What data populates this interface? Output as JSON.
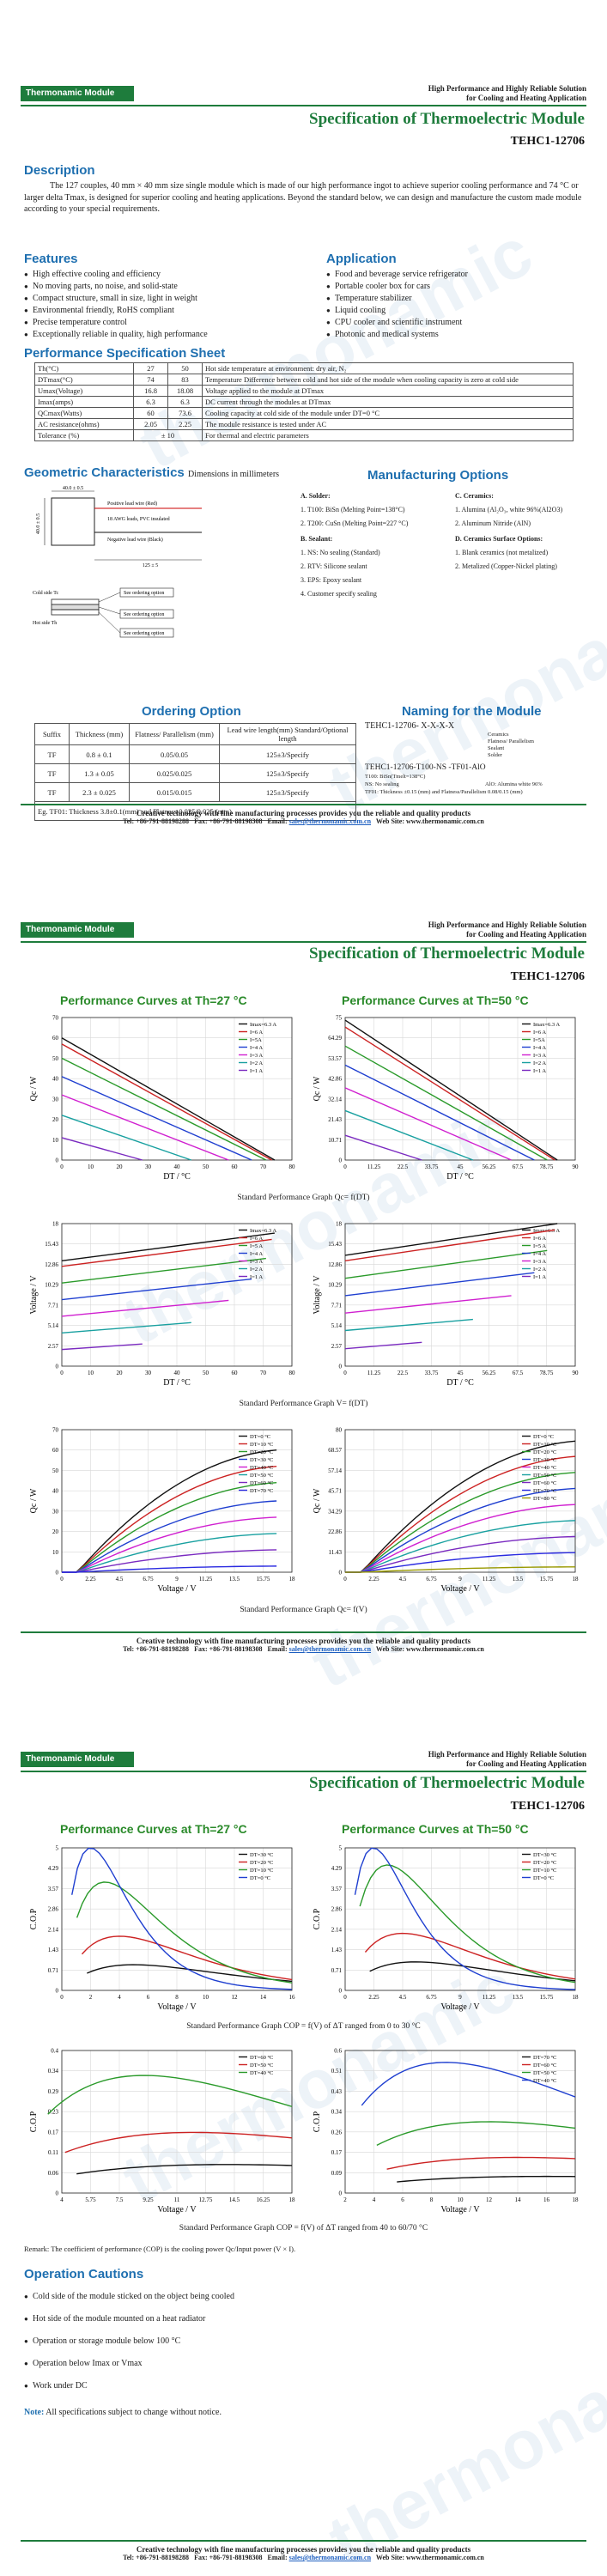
{
  "common": {
    "brand": "Thermonamic Module",
    "tagline_1": "High Performance and Highly Reliable Solution",
    "tagline_2": "for Cooling and Heating Application",
    "title": "Specification of Thermoelectric Module",
    "model": "TEHC1-12706",
    "footer_1": "Creative technology with fine manufacturing processes provides you the reliable and quality products",
    "footer_tel": "Tel: +86-791-88198288",
    "footer_fax": "Fax: +86-791-88198308",
    "footer_email_label": "Email:",
    "footer_email": "sales@thermonamic.com.cn",
    "footer_web": "Web Site: www.thermonamic.com.cn",
    "watermark": "thermonamic"
  },
  "page1": {
    "description_head": "Description",
    "description": "The 127 couples, 40 mm × 40 mm size single module which is made of our high performance ingot to achieve superior cooling performance and 74 °C or larger delta Tmax, is designed for superior cooling and heating applications. Beyond the standard below, we can design and manufacture the custom made module according to your special requirements.",
    "features_head": "Features",
    "features": [
      "High effective cooling and efficiency",
      "No moving parts, no noise, and solid-state",
      "Compact structure, small in size, light in weight",
      "Environmental friendly, RoHS compliant",
      "Precise temperature control",
      "Exceptionally reliable in quality, high performance"
    ],
    "application_head": "Application",
    "applications": [
      "Food and beverage service refrigerator",
      "Portable cooler box for cars",
      "Temperature stabilizer",
      "Liquid cooling",
      "CPU cooler and scientific instrument",
      "Photonic and medical systems"
    ],
    "perf_head": "Performance Specification Sheet",
    "perf_rows": [
      [
        "Th(°C)",
        "27",
        "50",
        "Hot side temperature at environment: dry air, N₂"
      ],
      [
        "DTmax(°C)",
        "74",
        "83",
        "Temperature Difference between cold and hot side of the module when cooling capacity is zero at cold side"
      ],
      [
        "Umax(Voltage)",
        "16.8",
        "18.08",
        "Voltage applied to the module at DTmax"
      ],
      [
        "Imax(amps)",
        "6.3",
        "6.3",
        "DC current through the modules at DTmax"
      ],
      [
        "QCmax(Watts)",
        "60",
        "73.6",
        "Cooling capacity at cold side of the module under DT=0 °C"
      ],
      [
        "AC resistance(ohms)",
        "2.05",
        "2.25",
        "The module resistance is tested under AC"
      ],
      [
        "Tolerance (%)",
        "± 10",
        "",
        "For thermal and electric parameters"
      ]
    ],
    "geo_head": "Geometric Characteristics",
    "geo_sub": "Dimensions in millimeters",
    "geo_labels": {
      "dim_top": "40.0 ± 0.5",
      "dim_side": "40.0 ± 0.5",
      "dim_wire": "125 ± 5",
      "lead_1": "Positive lead wire (Red)",
      "lead_2": "18 AWG leads, PVC insulated",
      "lead_3": "Negative lead wire (Black)",
      "cold": "Cold side Tc",
      "hot": "Hot side Th",
      "surface_1": "See ordering option",
      "surface_2": "See ordering option",
      "surface_3": "See ordering option"
    },
    "mfg_head": "Manufacturing Options",
    "solder_head": "A. Solder:",
    "solder": [
      "1. T100: BiSn (Melting Point=138°C)",
      "2. T200: CuSn (Melting Point=227 °C)"
    ],
    "sealant_head": "B. Sealant:",
    "sealant": [
      "1. NS: No sealing (Standard)",
      "2. RTV: Silicone sealant",
      "3. EPS: Epoxy sealant",
      "4. Customer specify sealing"
    ],
    "ceramics_head": "C. Ceramics:",
    "ceramics": [
      "1. Alumina (Al₂O₃, white 96%(Al2O3)",
      "2. Aluminum Nitride (AlN)"
    ],
    "surface_head": "D. Ceramics Surface Options:",
    "surface": [
      "1. Blank ceramics (not metalized)",
      "2. Metalized (Copper-Nickel plating)"
    ],
    "order_head": "Ordering Option",
    "order_cols": [
      "Suffix",
      "Thickness (mm)",
      "Flatness/ Parallelism (mm)",
      "Lead wire length(mm) Standard/Optional length"
    ],
    "order_rows": [
      [
        "TF",
        "0.8 ± 0.1",
        "0.05/0.05",
        "125±3/Specify"
      ],
      [
        "TF",
        "1.3 ± 0.05",
        "0.025/0.025",
        "125±3/Specify"
      ],
      [
        "TF",
        "2.3 ± 0.025",
        "0.015/0.015",
        "125±3/Specify"
      ]
    ],
    "order_note": "Eg. TF01: Thickness 3.8±0.1(mm) and Flatness 0.025/0.025 (mm)",
    "naming_head": "Naming for the Module",
    "naming_code": "TEHC1-12706-  X-X-X-X",
    "naming_parts": [
      "Ceramics",
      "Flatness/ Parallelism",
      "Sealant",
      "Solder"
    ],
    "naming_example": "TEHC1-12706-T100-NS -TF01-AlO",
    "naming_ex_1": "T100: BiSn(Tmelt=138°C)",
    "naming_ex_2": "NS: No sealing",
    "naming_ex_3": "AlO: Alumina white 96%",
    "naming_ex_4": "TF01: Thickness ±0.15 (mm) and Flatness/Parallelism 0.08/0.15 (mm)"
  },
  "page2": {
    "head_left": "Performance Curves at Th=27 °C",
    "head_right": "Performance Curves at Th=50 °C",
    "caption_1": "Standard Performance Graph Qc= f(DT)",
    "caption_2": "Standard Performance Graph V= f(DT)",
    "caption_3": "Standard Performance Graph Qc= f(V)",
    "qc_ylabel": "Qc / W",
    "v_ylabel": "Voltage / V",
    "dt_xlabel": "DT / °C",
    "v_xlabel": "Voltage / V"
  },
  "page3": {
    "head_left": "Performance Curves at Th=27 °C",
    "head_right": "Performance Curves at Th=50 °C",
    "cop_ylabel": "C.O.P",
    "v_xlabel": "Voltage / V",
    "caption_1": "Standard Performance Graph COP = f(V) of ΔT ranged from 0 to 30 °C",
    "caption_2": "Standard Performance Graph COP = f(V) of ΔT ranged from 40 to 60/70 °C",
    "remark": "Remark: The coefficient of performance (COP) is the cooling power Qc/Input power (V × I).",
    "cautions_head": "Operation Cautions",
    "cautions": [
      "Cold side of the module sticked on the object being cooled",
      "Hot side of the module mounted on a heat radiator",
      "Operation or storage module below 100 °C",
      "Operation below Imax or Vmax",
      "Work under DC"
    ],
    "note_label": "Note:",
    "note": "All specifications subject to change without notice."
  },
  "chart_data": [
    {
      "type": "line",
      "title": "Performance Curves at Th=27 °C",
      "xlabel": "DT / °C",
      "ylabel": "Qc / W",
      "xlim": [
        0,
        80
      ],
      "ylim": [
        0,
        70
      ],
      "series": [
        {
          "name": "Imax=6.3 A",
          "x": [
            0,
            74
          ],
          "y": [
            60,
            0
          ]
        },
        {
          "name": "I=6 A",
          "x": [
            0,
            73
          ],
          "y": [
            57,
            0
          ]
        },
        {
          "name": "I=5A",
          "x": [
            0,
            71
          ],
          "y": [
            50,
            0
          ]
        },
        {
          "name": "I=4 A",
          "x": [
            0,
            66
          ],
          "y": [
            41,
            0
          ]
        },
        {
          "name": "I=3 A",
          "x": [
            0,
            58
          ],
          "y": [
            32,
            0
          ]
        },
        {
          "name": "I=2 A",
          "x": [
            0,
            45
          ],
          "y": [
            22,
            0
          ]
        },
        {
          "name": "I=1 A",
          "x": [
            0,
            28
          ],
          "y": [
            11,
            0
          ]
        }
      ]
    },
    {
      "type": "line",
      "title": "Performance Curves at Th=50 °C",
      "xlabel": "DT / °C",
      "ylabel": "Qc / W",
      "xlim": [
        0,
        90
      ],
      "ylim": [
        0,
        75
      ],
      "series": [
        {
          "name": "Imax=6.3 A",
          "x": [
            0,
            83
          ],
          "y": [
            73.6,
            0
          ]
        },
        {
          "name": "I=6 A",
          "x": [
            0,
            82
          ],
          "y": [
            70,
            0
          ]
        },
        {
          "name": "I=5A",
          "x": [
            0,
            79
          ],
          "y": [
            60,
            0
          ]
        },
        {
          "name": "I=4 A",
          "x": [
            0,
            74
          ],
          "y": [
            50,
            0
          ]
        },
        {
          "name": "I=3 A",
          "x": [
            0,
            65
          ],
          "y": [
            38,
            0
          ]
        },
        {
          "name": "I=2 A",
          "x": [
            0,
            50
          ],
          "y": [
            26,
            0
          ]
        },
        {
          "name": "I=1 A",
          "x": [
            0,
            30
          ],
          "y": [
            13,
            0
          ]
        }
      ]
    },
    {
      "type": "line",
      "title": "",
      "xlabel": "DT / °C",
      "ylabel": "Voltage / V",
      "xlim": [
        0,
        80
      ],
      "ylim": [
        0,
        18
      ],
      "series": [
        {
          "name": "Imax=6.3 A",
          "x": [
            0,
            74
          ],
          "y": [
            13.3,
            16.8
          ]
        },
        {
          "name": "I=6 A",
          "x": [
            0,
            73
          ],
          "y": [
            12.6,
            16
          ]
        },
        {
          "name": "I=5 A",
          "x": [
            0,
            71
          ],
          "y": [
            10.5,
            13.6
          ]
        },
        {
          "name": "I=4 A",
          "x": [
            0,
            66
          ],
          "y": [
            8.4,
            11
          ]
        },
        {
          "name": "I=3 A",
          "x": [
            0,
            58
          ],
          "y": [
            6.3,
            8.3
          ]
        },
        {
          "name": "I=2 A",
          "x": [
            0,
            45
          ],
          "y": [
            4.2,
            5.5
          ]
        },
        {
          "name": "I=1 A",
          "x": [
            0,
            28
          ],
          "y": [
            2.1,
            2.8
          ]
        }
      ]
    },
    {
      "type": "line",
      "title": "",
      "xlabel": "DT / °C",
      "ylabel": "Voltage / V",
      "xlim": [
        0,
        90
      ],
      "ylim": [
        0,
        18
      ],
      "series": [
        {
          "name": "Imax=6.3 A",
          "x": [
            0,
            83
          ],
          "y": [
            14,
            18
          ]
        },
        {
          "name": "I=6 A",
          "x": [
            0,
            82
          ],
          "y": [
            13.3,
            17.2
          ]
        },
        {
          "name": "I=5 A",
          "x": [
            0,
            79
          ],
          "y": [
            11.1,
            14.6
          ]
        },
        {
          "name": "I=4 A",
          "x": [
            0,
            74
          ],
          "y": [
            8.9,
            11.8
          ]
        },
        {
          "name": "I=3 A",
          "x": [
            0,
            65
          ],
          "y": [
            6.7,
            8.9
          ]
        },
        {
          "name": "I=2 A",
          "x": [
            0,
            50
          ],
          "y": [
            4.5,
            5.9
          ]
        },
        {
          "name": "I=1 A",
          "x": [
            0,
            30
          ],
          "y": [
            2.2,
            3
          ]
        }
      ]
    },
    {
      "type": "line",
      "title": "",
      "xlabel": "Voltage / V",
      "ylabel": "Qc / W",
      "xlim": [
        0,
        18
      ],
      "ylim": [
        0,
        70
      ],
      "series": [
        {
          "name": "DT=0 °C",
          "peak": 60,
          "vmax": 16.8
        },
        {
          "name": "DT=10 °C",
          "peak": 52,
          "vmax": 16.8
        },
        {
          "name": "DT=20 °C",
          "peak": 44,
          "vmax": 16.8
        },
        {
          "name": "DT=30 °C",
          "peak": 35,
          "vmax": 16.8
        },
        {
          "name": "DT=40 °C",
          "peak": 27,
          "vmax": 16.8
        },
        {
          "name": "DT=50 °C",
          "peak": 19,
          "vmax": 16.8
        },
        {
          "name": "DT=60 °C",
          "peak": 11,
          "vmax": 16.8
        },
        {
          "name": "DT=70 °C",
          "peak": 3,
          "vmax": 16.8
        }
      ]
    },
    {
      "type": "line",
      "title": "",
      "xlabel": "Voltage / V",
      "ylabel": "Qc / W",
      "xlim": [
        0,
        18
      ],
      "ylim": [
        0,
        80
      ],
      "series": [
        {
          "name": "DT=0 °C",
          "peak": 73.6,
          "vmax": 18
        },
        {
          "name": "DT=10 °C",
          "peak": 65,
          "vmax": 18
        },
        {
          "name": "DT=20 °C",
          "peak": 56,
          "vmax": 18
        },
        {
          "name": "DT=30 °C",
          "peak": 47,
          "vmax": 18
        },
        {
          "name": "DT=40 °C",
          "peak": 38,
          "vmax": 18
        },
        {
          "name": "DT=50 °C",
          "peak": 29,
          "vmax": 18
        },
        {
          "name": "DT=60 °C",
          "peak": 20,
          "vmax": 18
        },
        {
          "name": "DT=70 °C",
          "peak": 11,
          "vmax": 18
        },
        {
          "name": "DT=80 °C",
          "peak": 3,
          "vmax": 18
        }
      ]
    },
    {
      "type": "line",
      "title": "",
      "xlabel": "Voltage / V",
      "ylabel": "C.O.P",
      "xlim": [
        0,
        16
      ],
      "ylim": [
        0,
        5
      ],
      "series": [
        {
          "name": "DT=30 °C",
          "peak": 0.9,
          "vpeak": 5
        },
        {
          "name": "DT=20 °C",
          "peak": 1.9,
          "vpeak": 4
        },
        {
          "name": "DT=10 °C",
          "peak": 3.8,
          "vpeak": 3
        },
        {
          "name": "DT=0 °C",
          "peak": 5,
          "vpeak": 2
        }
      ]
    },
    {
      "type": "line",
      "title": "",
      "xlabel": "Voltage / V",
      "ylabel": "C.O.P",
      "xlim": [
        0,
        18
      ],
      "ylim": [
        0,
        5
      ],
      "series": [
        {
          "name": "DT=30 °C",
          "peak": 1,
          "vpeak": 5.5
        },
        {
          "name": "DT=20 °C",
          "peak": 2,
          "vpeak": 4.5
        },
        {
          "name": "DT=10 °C",
          "peak": 4.4,
          "vpeak": 3.3
        },
        {
          "name": "DT=0 °C",
          "peak": 5,
          "vpeak": 2.2
        }
      ]
    },
    {
      "type": "line",
      "title": "",
      "xlabel": "Voltage / V",
      "ylabel": "C.O.P",
      "xlim": [
        4,
        18
      ],
      "ylim": [
        0,
        0.4
      ],
      "series": [
        {
          "name": "DT=60 °C",
          "peak": 0.08,
          "vpeak": 14
        },
        {
          "name": "DT=50 °C",
          "peak": 0.17,
          "vpeak": 12
        },
        {
          "name": "DT=40 °C",
          "peak": 0.33,
          "vpeak": 9
        }
      ]
    },
    {
      "type": "line",
      "title": "",
      "xlabel": "Voltage / V",
      "ylabel": "C.O.P",
      "xlim": [
        2,
        18
      ],
      "ylim": [
        0,
        0.6
      ],
      "series": [
        {
          "name": "DT=70 °C",
          "peak": 0.07,
          "vpeak": 16
        },
        {
          "name": "DT=60 °C",
          "peak": 0.15,
          "vpeak": 14
        },
        {
          "name": "DT=50 °C",
          "peak": 0.3,
          "vpeak": 12
        },
        {
          "name": "DT=40 °C",
          "peak": 0.55,
          "vpeak": 9
        }
      ]
    }
  ]
}
